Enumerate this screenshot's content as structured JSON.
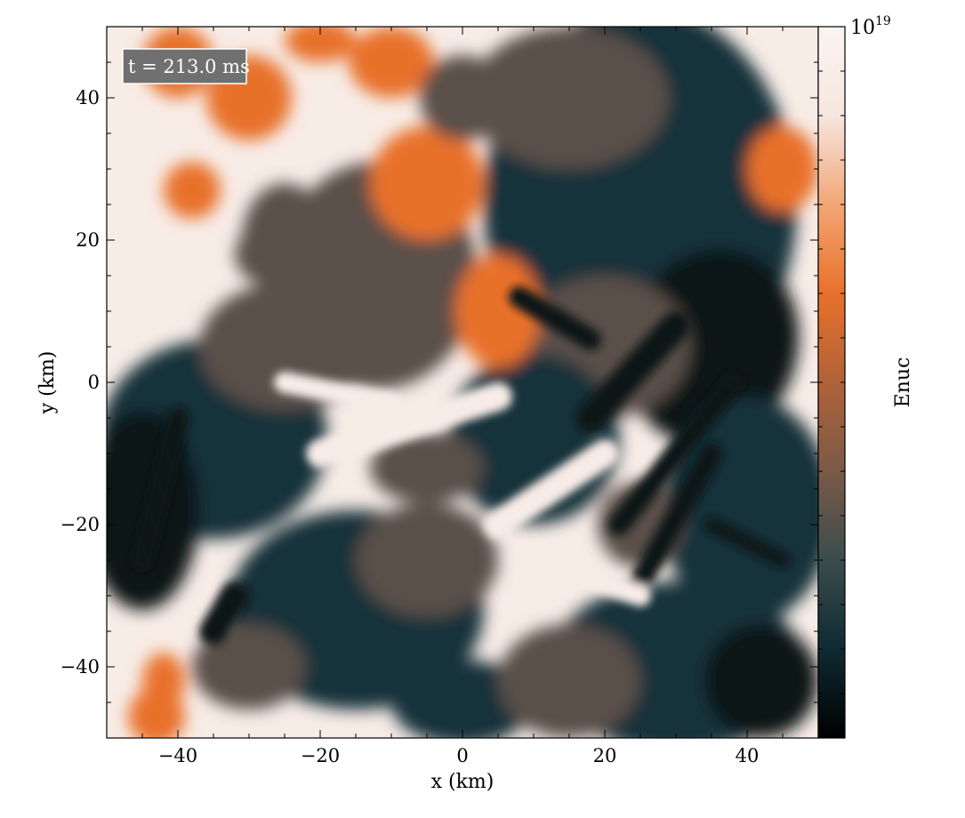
{
  "chart_data": {
    "type": "heatmap",
    "title": "",
    "annotation": "t = 213.0 ms",
    "xlabel": "x  (km)",
    "ylabel": "y  (km)",
    "xlim": [
      -50,
      50
    ],
    "ylim": [
      -50,
      50
    ],
    "xticks": [
      -40,
      -20,
      0,
      20,
      40
    ],
    "yticks": [
      -40,
      -20,
      0,
      20,
      40
    ],
    "xtick_labels": [
      "−40",
      "−20",
      "0",
      "20",
      "40"
    ],
    "ytick_labels": [
      "−40",
      "−20",
      "0",
      "20",
      "40"
    ],
    "colorbar": {
      "label": "Enuc",
      "max_label_base": "10",
      "max_label_exp": "19",
      "stops": [
        "#000000",
        "#0f2a33",
        "#3b4c4c",
        "#7a5a48",
        "#b0623a",
        "#e8712a",
        "#f2a676",
        "#f7e6df",
        "#fcf4f2"
      ]
    },
    "colors": {
      "low": "#0b1418",
      "dark_teal": "#16313a",
      "mid": "#5a4f49",
      "orange": "#e8712a",
      "light": "#f8ece7",
      "label_box": "#707070"
    },
    "grid": false,
    "field_description": "turbulent nuclear energy generation field: dark low-Enuc filaments on right half, bright saturated regions upper-left and lower-center"
  }
}
